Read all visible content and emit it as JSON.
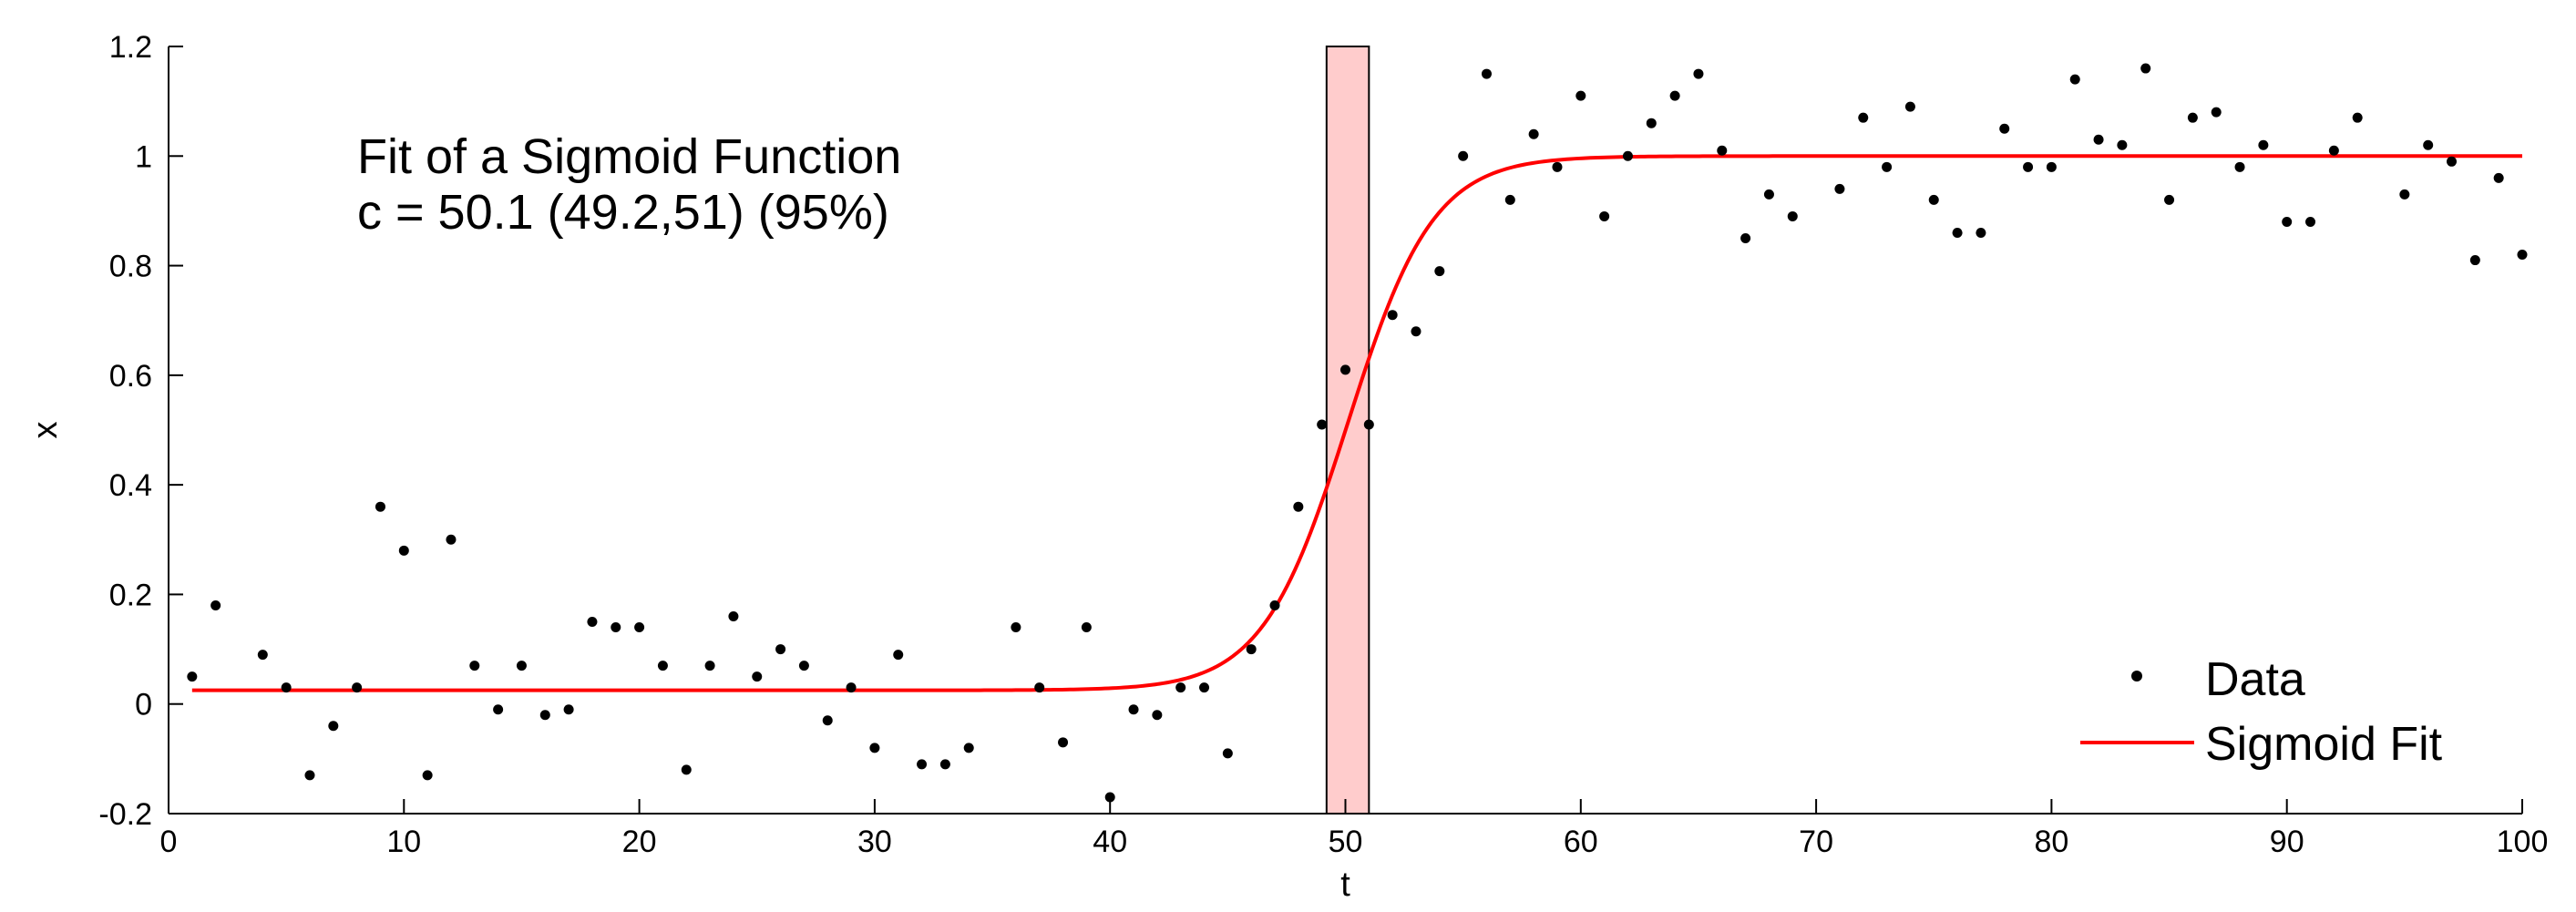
{
  "chart_data": {
    "type": "scatter",
    "title": "",
    "xlabel": "t",
    "ylabel": "x",
    "xlim": [
      0,
      100
    ],
    "ylim": [
      -0.2,
      1.2
    ],
    "grid": false,
    "legend_position": "bottom-right",
    "x_ticks": [
      "0",
      "10",
      "20",
      "30",
      "40",
      "50",
      "60",
      "70",
      "80",
      "90",
      "100"
    ],
    "y_ticks": [
      "-0.2",
      "0",
      "0.2",
      "0.4",
      "0.6",
      "0.8",
      "1",
      "1.2"
    ],
    "annotation": {
      "line1": "Fit of a Sigmoid Function",
      "line2": "c = 50.1  (49.2,51) (95%)"
    },
    "confidence_band": {
      "x_start": 49.2,
      "x_end": 51,
      "color": "#ffcccc"
    },
    "series": [
      {
        "name": "Data",
        "mode": "markers",
        "color": "#000000",
        "points": [
          [
            1,
            0.05
          ],
          [
            2,
            0.18
          ],
          [
            4,
            0.09
          ],
          [
            5,
            0.03
          ],
          [
            6,
            -0.13
          ],
          [
            7,
            -0.04
          ],
          [
            8,
            0.03
          ],
          [
            9,
            0.36
          ],
          [
            10,
            0.28
          ],
          [
            11,
            -0.13
          ],
          [
            12,
            0.3
          ],
          [
            13,
            0.07
          ],
          [
            14,
            -0.01
          ],
          [
            15,
            0.07
          ],
          [
            16,
            -0.02
          ],
          [
            17,
            -0.01
          ],
          [
            18,
            0.15
          ],
          [
            19,
            0.14
          ],
          [
            20,
            0.14
          ],
          [
            21,
            0.07
          ],
          [
            22,
            -0.12
          ],
          [
            23,
            0.07
          ],
          [
            24,
            0.16
          ],
          [
            25,
            0.05
          ],
          [
            26,
            0.1
          ],
          [
            27,
            0.07
          ],
          [
            28,
            -0.03
          ],
          [
            29,
            0.03
          ],
          [
            30,
            -0.08
          ],
          [
            31,
            0.09
          ],
          [
            32,
            -0.11
          ],
          [
            33,
            -0.11
          ],
          [
            34,
            -0.08
          ],
          [
            36,
            0.14
          ],
          [
            37,
            0.03
          ],
          [
            38,
            -0.07
          ],
          [
            39,
            0.14
          ],
          [
            40,
            -0.17
          ],
          [
            41,
            -0.01
          ],
          [
            42,
            -0.02
          ],
          [
            43,
            0.03
          ],
          [
            44,
            0.03
          ],
          [
            45,
            -0.09
          ],
          [
            46,
            0.1
          ],
          [
            47,
            0.18
          ],
          [
            48,
            0.36
          ],
          [
            49,
            0.51
          ],
          [
            50,
            0.61
          ],
          [
            51,
            0.51
          ],
          [
            52,
            0.71
          ],
          [
            53,
            0.68
          ],
          [
            54,
            0.79
          ],
          [
            55,
            1.0
          ],
          [
            56,
            1.15
          ],
          [
            57,
            0.92
          ],
          [
            58,
            1.04
          ],
          [
            59,
            0.98
          ],
          [
            60,
            1.11
          ],
          [
            61,
            0.89
          ],
          [
            62,
            1.0
          ],
          [
            63,
            1.06
          ],
          [
            64,
            1.11
          ],
          [
            65,
            1.15
          ],
          [
            66,
            1.01
          ],
          [
            67,
            0.85
          ],
          [
            68,
            0.93
          ],
          [
            69,
            0.89
          ],
          [
            71,
            0.94
          ],
          [
            72,
            1.07
          ],
          [
            73,
            0.98
          ],
          [
            74,
            1.09
          ],
          [
            75,
            0.92
          ],
          [
            76,
            0.86
          ],
          [
            77,
            0.86
          ],
          [
            78,
            1.05
          ],
          [
            79,
            0.98
          ],
          [
            80,
            0.98
          ],
          [
            81,
            1.14
          ],
          [
            82,
            1.03
          ],
          [
            83,
            1.02
          ],
          [
            84,
            1.16
          ],
          [
            85,
            0.92
          ],
          [
            86,
            1.07
          ],
          [
            87,
            1.08
          ],
          [
            88,
            0.98
          ],
          [
            89,
            1.02
          ],
          [
            90,
            0.88
          ],
          [
            91,
            0.88
          ],
          [
            92,
            1.01
          ],
          [
            93,
            1.07
          ],
          [
            95,
            0.93
          ],
          [
            96,
            1.02
          ],
          [
            97,
            0.99
          ],
          [
            98,
            0.81
          ],
          [
            99,
            0.96
          ],
          [
            100,
            0.82
          ]
        ]
      },
      {
        "name": "Sigmoid Fit",
        "mode": "line",
        "color": "#ff0000",
        "model": {
          "lower": 0.025,
          "upper": 1.0,
          "c": 50.1,
          "k": 0.55,
          "x_start": 1,
          "x_end": 100
        }
      }
    ]
  }
}
